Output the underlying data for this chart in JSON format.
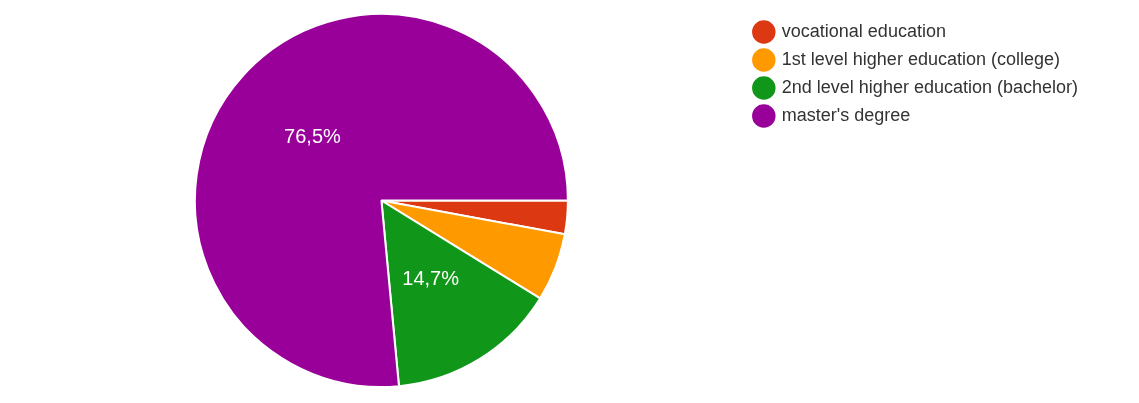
{
  "chart_data": {
    "type": "pie",
    "categories": [
      "vocational education",
      "1st level higher education (college)",
      "2nd level higher education (bachelor)",
      "master's degree"
    ],
    "values": [
      2.9,
      5.9,
      14.7,
      76.5
    ],
    "colors": [
      "#dc3912",
      "#ff9900",
      "#109618",
      "#990099"
    ],
    "value_labels": [
      null,
      null,
      "14,7%",
      "76,5%"
    ],
    "legend": "right"
  }
}
